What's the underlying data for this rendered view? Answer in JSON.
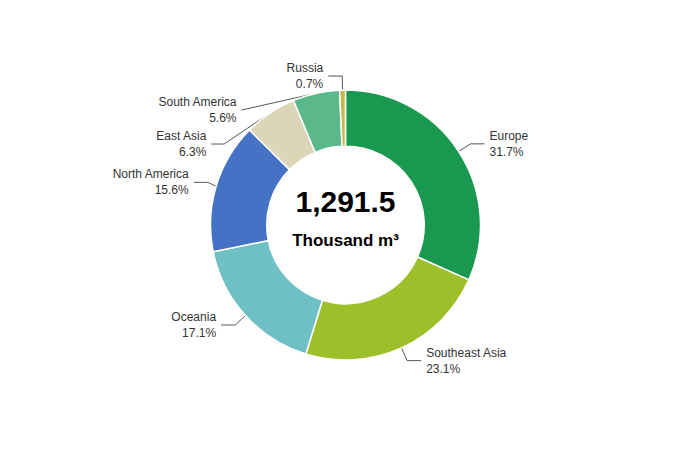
{
  "chart_data": {
    "type": "pie",
    "title": "1,291.5",
    "subtitle": "Thousand m³",
    "categories": [
      "Europe",
      "Southeast Asia",
      "Oceania",
      "North America",
      "East Asia",
      "South America",
      "Russia"
    ],
    "values": [
      31.7,
      23.1,
      17.1,
      15.6,
      6.3,
      5.6,
      0.7
    ],
    "value_labels": [
      "31.7%",
      "23.1%",
      "17.1%",
      "15.6%",
      "6.3%",
      "5.6%",
      "0.7%"
    ],
    "colors": [
      "#1a9850",
      "#9dbf2a",
      "#6ec0c4",
      "#4472c4",
      "#ddd5b8",
      "#5ab88a",
      "#c8b850"
    ],
    "data_labels": true,
    "legend": false
  }
}
